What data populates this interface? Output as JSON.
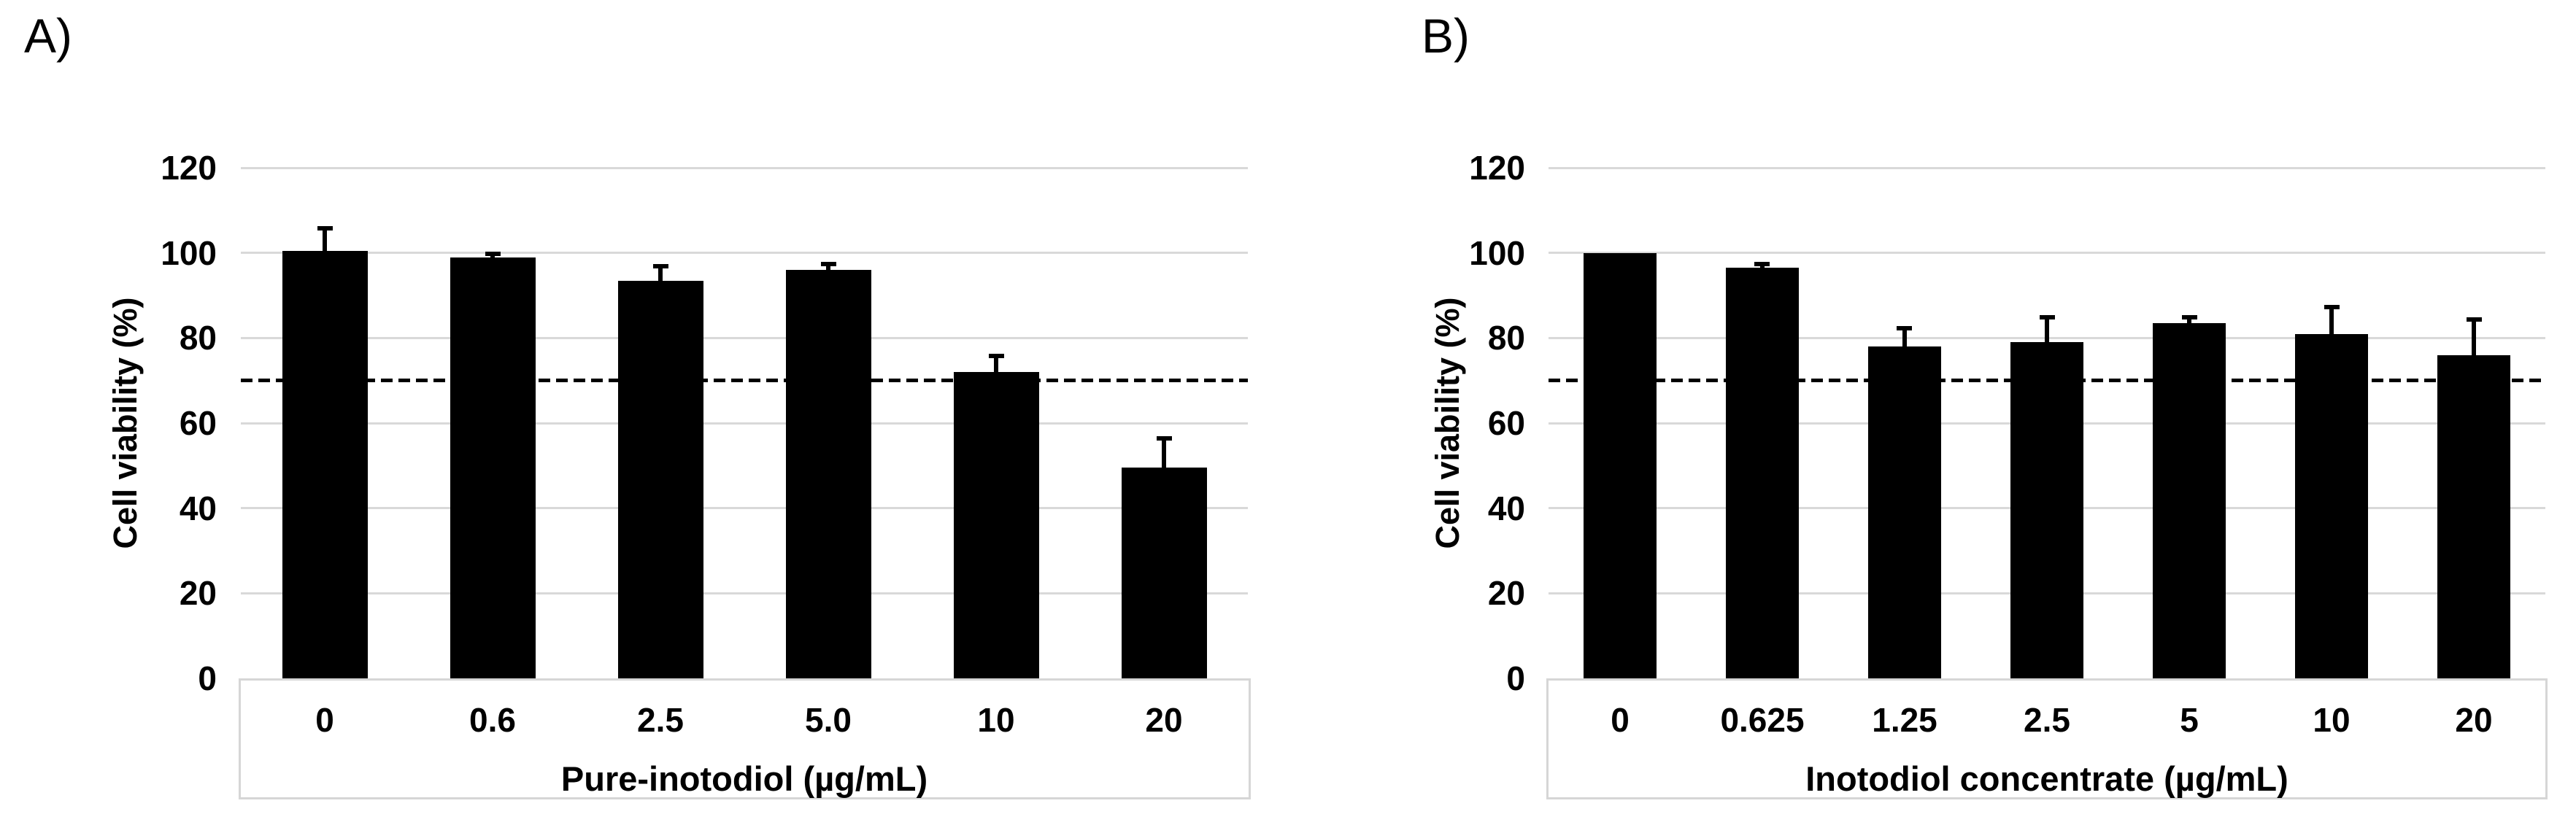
{
  "figure": {
    "background": "#ffffff",
    "bar_color": "#000000",
    "gridline_color": "#d9d9d9",
    "reference_line_color": "#000000"
  },
  "chart_data": [
    {
      "type": "bar",
      "panel_label": "A)",
      "title": "",
      "xlabel": "Pure-inotodiol (µg/mL)",
      "ylabel": "Cell viability (%)",
      "categories": [
        "0",
        "0.6",
        "2.5",
        "5.0",
        "10",
        "20"
      ],
      "values": [
        100.5,
        99,
        93.5,
        96,
        72,
        49.5
      ],
      "error_bars_upper": [
        5,
        0.5,
        3,
        1,
        3.5,
        6.5
      ],
      "reference_line": 70,
      "reference_line_style": "dashed",
      "ylim": [
        0,
        120
      ],
      "yticks": [
        0,
        20,
        40,
        60,
        80,
        100,
        120
      ],
      "grid": true,
      "legend": "none",
      "bar_color": "#000000"
    },
    {
      "type": "bar",
      "panel_label": "B)",
      "title": "",
      "xlabel": "Inotodiol concentrate (µg/mL)",
      "ylabel": "Cell viability (%)",
      "categories": [
        "0",
        "0.625",
        "1.25",
        "2.5",
        "5",
        "10",
        "20"
      ],
      "values": [
        100,
        96.5,
        78,
        79,
        83.5,
        81,
        76
      ],
      "error_bars_upper": [
        0,
        0.5,
        4,
        5.5,
        1,
        6,
        8
      ],
      "reference_line": 70,
      "reference_line_style": "dashed",
      "ylim": [
        0,
        120
      ],
      "yticks": [
        0,
        20,
        40,
        60,
        80,
        100,
        120
      ],
      "grid": true,
      "legend": "none",
      "bar_color": "#000000"
    }
  ]
}
